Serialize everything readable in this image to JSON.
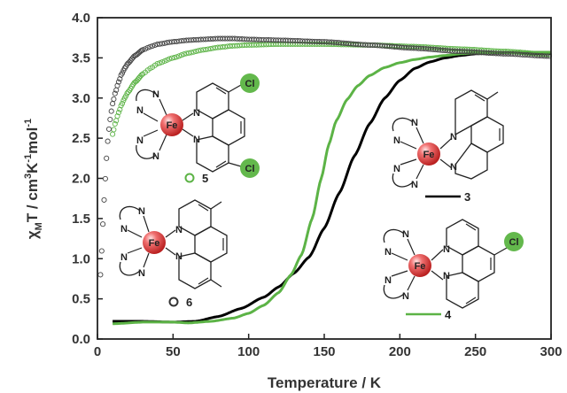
{
  "chart_data": {
    "type": "scatter",
    "xlabel": "Temperature / K",
    "ylabel_parts": {
      "chi": "χ",
      "sub_m": "M",
      "rest1": "T / cm",
      "sup3": "3",
      "rest2": "K",
      "supm1a": "-1",
      "rest3": "mol",
      "supm1b": "-1"
    },
    "xlim": [
      0,
      300
    ],
    "ylim": [
      0.0,
      4.0
    ],
    "xticks": [
      0,
      50,
      100,
      150,
      200,
      250,
      300
    ],
    "yticks": [
      "0.0",
      "0.5",
      "1.0",
      "1.5",
      "2.0",
      "2.5",
      "3.0",
      "3.5",
      "4.0"
    ],
    "series": [
      {
        "name": "3",
        "style": "line",
        "color": "#000000",
        "x": [
          10,
          30,
          50,
          65,
          80,
          95,
          110,
          120,
          130,
          140,
          150,
          160,
          170,
          180,
          190,
          200,
          210,
          220,
          230,
          240,
          250,
          260,
          280,
          300
        ],
        "y": [
          0.22,
          0.22,
          0.21,
          0.22,
          0.28,
          0.38,
          0.52,
          0.65,
          0.82,
          1.02,
          1.38,
          1.82,
          2.28,
          2.68,
          3.0,
          3.22,
          3.37,
          3.45,
          3.5,
          3.53,
          3.55,
          3.56,
          3.56,
          3.55
        ]
      },
      {
        "name": "4",
        "style": "line",
        "color": "#5cb346",
        "x": [
          10,
          30,
          50,
          60,
          75,
          90,
          100,
          110,
          120,
          128,
          135,
          142,
          148,
          153,
          158,
          165,
          172,
          180,
          190,
          200,
          210,
          220,
          230,
          240,
          250,
          270,
          300
        ],
        "y": [
          0.19,
          0.21,
          0.21,
          0.2,
          0.22,
          0.26,
          0.32,
          0.42,
          0.58,
          0.8,
          1.05,
          1.5,
          2.0,
          2.42,
          2.72,
          2.98,
          3.15,
          3.28,
          3.38,
          3.44,
          3.48,
          3.51,
          3.53,
          3.55,
          3.56,
          3.57,
          3.57
        ]
      },
      {
        "name": "5",
        "style": "open-circle",
        "color": "#5cb346",
        "x": [
          10,
          12,
          14,
          16,
          18,
          20,
          25,
          30,
          35,
          40,
          50,
          60,
          70,
          80,
          90,
          100,
          120,
          150,
          180,
          210,
          240,
          270,
          300
        ],
        "y": [
          2.55,
          2.7,
          2.82,
          2.92,
          3.0,
          3.07,
          3.2,
          3.3,
          3.37,
          3.43,
          3.5,
          3.56,
          3.6,
          3.63,
          3.65,
          3.66,
          3.67,
          3.67,
          3.66,
          3.64,
          3.61,
          3.58,
          3.54
        ]
      },
      {
        "name": "6",
        "style": "open-circle",
        "color": "#444444",
        "x": [
          2,
          3,
          4,
          5,
          6,
          7,
          8,
          9,
          10,
          12,
          14,
          16,
          18,
          20,
          25,
          30,
          35,
          40,
          50,
          60,
          70,
          80,
          90,
          100,
          120,
          150,
          180,
          210,
          240,
          270,
          300
        ],
        "y": [
          0.8,
          1.15,
          1.6,
          1.95,
          2.25,
          2.5,
          2.68,
          2.82,
          2.93,
          3.08,
          3.2,
          3.3,
          3.37,
          3.43,
          3.53,
          3.6,
          3.64,
          3.67,
          3.7,
          3.72,
          3.73,
          3.74,
          3.74,
          3.73,
          3.72,
          3.7,
          3.66,
          3.62,
          3.58,
          3.55,
          3.52
        ]
      }
    ],
    "molecules": {
      "fe_label": "Fe",
      "n_label": "N",
      "cl_label": "Cl",
      "label_5": "5",
      "label_6": "6",
      "label_3": "3",
      "label_4": "4"
    }
  }
}
